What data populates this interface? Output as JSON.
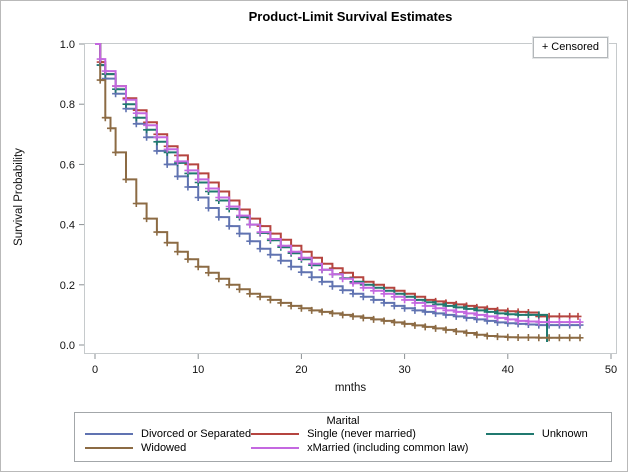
{
  "figure": {
    "title": "Product-Limit Survival Estimates"
  },
  "inset": {
    "censored_label": "+ Censored"
  },
  "axes": {
    "x": {
      "label": "mnths",
      "min": 0,
      "max": 50,
      "ticks": [
        0,
        10,
        20,
        30,
        40,
        50
      ],
      "tick_labels": [
        "0",
        "10",
        "20",
        "30",
        "40",
        "50"
      ]
    },
    "y": {
      "label": "Survival Probability",
      "min": 0.0,
      "max": 1.0,
      "ticks": [
        0.0,
        0.2,
        0.4,
        0.6,
        0.8,
        1.0
      ],
      "tick_labels": [
        "0.0",
        "0.2",
        "0.4",
        "0.6",
        "0.8",
        "1.0"
      ]
    }
  },
  "legend": {
    "title": "Marital",
    "entries": [
      {
        "label": "Divorced or Separated",
        "color": "#6073b1"
      },
      {
        "label": "Single (never married)",
        "color": "#b5443f"
      },
      {
        "label": "Unknown",
        "color": "#20796f"
      },
      {
        "label": "Widowed",
        "color": "#8c6b44"
      },
      {
        "label": "xMarried (including common law)",
        "color": "#c468e0"
      }
    ]
  },
  "chart_data": {
    "type": "line",
    "step": true,
    "title": "Product-Limit Survival Estimates",
    "xlabel": "mnths",
    "ylabel": "Survival Probability",
    "xlim": [
      0,
      50
    ],
    "ylim": [
      0.0,
      1.0
    ],
    "grid": false,
    "legend_position": "bottom",
    "censor_marker": "+",
    "series": [
      {
        "name": "Divorced or Separated",
        "color": "#6073b1",
        "end_event": false,
        "points": [
          [
            0,
            1.0
          ],
          [
            0.5,
            0.93
          ],
          [
            1,
            0.885
          ],
          [
            2,
            0.835
          ],
          [
            3,
            0.785
          ],
          [
            4,
            0.735
          ],
          [
            5,
            0.69
          ],
          [
            6,
            0.645
          ],
          [
            7,
            0.6
          ],
          [
            8,
            0.56
          ],
          [
            9,
            0.525
          ],
          [
            10,
            0.49
          ],
          [
            11,
            0.455
          ],
          [
            12,
            0.425
          ],
          [
            13,
            0.395
          ],
          [
            14,
            0.37
          ],
          [
            15,
            0.345
          ],
          [
            16,
            0.32
          ],
          [
            17,
            0.3
          ],
          [
            18,
            0.28
          ],
          [
            19,
            0.26
          ],
          [
            20,
            0.242
          ],
          [
            21,
            0.225
          ],
          [
            22,
            0.21
          ],
          [
            23,
            0.195
          ],
          [
            24,
            0.182
          ],
          [
            25,
            0.17
          ],
          [
            26,
            0.16
          ],
          [
            27,
            0.15
          ],
          [
            28,
            0.14
          ],
          [
            29,
            0.13
          ],
          [
            30,
            0.122
          ],
          [
            31,
            0.115
          ],
          [
            32,
            0.11
          ],
          [
            33,
            0.105
          ],
          [
            34,
            0.1
          ],
          [
            35,
            0.095
          ],
          [
            36,
            0.09
          ],
          [
            37,
            0.085
          ],
          [
            38,
            0.08
          ],
          [
            39,
            0.075
          ],
          [
            40,
            0.072
          ],
          [
            41,
            0.07
          ],
          [
            42,
            0.068
          ],
          [
            43,
            0.066
          ],
          [
            44,
            0.066
          ],
          [
            45,
            0.066
          ],
          [
            46,
            0.066
          ],
          [
            47,
            0.066
          ]
        ]
      },
      {
        "name": "Single (never married)",
        "color": "#b5443f",
        "end_event": false,
        "points": [
          [
            0,
            1.0
          ],
          [
            0.5,
            0.94
          ],
          [
            1,
            0.9
          ],
          [
            2,
            0.86
          ],
          [
            3,
            0.82
          ],
          [
            4,
            0.78
          ],
          [
            5,
            0.74
          ],
          [
            6,
            0.7
          ],
          [
            7,
            0.66
          ],
          [
            8,
            0.63
          ],
          [
            9,
            0.6
          ],
          [
            10,
            0.57
          ],
          [
            11,
            0.54
          ],
          [
            12,
            0.51
          ],
          [
            13,
            0.48
          ],
          [
            14,
            0.45
          ],
          [
            15,
            0.42
          ],
          [
            16,
            0.395
          ],
          [
            17,
            0.37
          ],
          [
            18,
            0.35
          ],
          [
            19,
            0.33
          ],
          [
            20,
            0.31
          ],
          [
            21,
            0.29
          ],
          [
            22,
            0.27
          ],
          [
            23,
            0.255
          ],
          [
            24,
            0.24
          ],
          [
            25,
            0.225
          ],
          [
            26,
            0.21
          ],
          [
            27,
            0.2
          ],
          [
            28,
            0.19
          ],
          [
            29,
            0.18
          ],
          [
            30,
            0.17
          ],
          [
            31,
            0.16
          ],
          [
            32,
            0.15
          ],
          [
            33,
            0.145
          ],
          [
            34,
            0.14
          ],
          [
            35,
            0.135
          ],
          [
            36,
            0.13
          ],
          [
            37,
            0.125
          ],
          [
            38,
            0.12
          ],
          [
            39,
            0.115
          ],
          [
            40,
            0.112
          ],
          [
            41,
            0.11
          ],
          [
            42,
            0.108
          ],
          [
            43,
            0.095
          ],
          [
            44,
            0.095
          ],
          [
            45,
            0.095
          ],
          [
            46,
            0.095
          ],
          [
            46.8,
            0.095
          ]
        ]
      },
      {
        "name": "Unknown",
        "color": "#20796f",
        "end_event": true,
        "points": [
          [
            0,
            1.0
          ],
          [
            0.5,
            0.93
          ],
          [
            1,
            0.9
          ],
          [
            2,
            0.85
          ],
          [
            3,
            0.8
          ],
          [
            4,
            0.755
          ],
          [
            5,
            0.715
          ],
          [
            6,
            0.675
          ],
          [
            7,
            0.64
          ],
          [
            8,
            0.605
          ],
          [
            9,
            0.57
          ],
          [
            10,
            0.54
          ],
          [
            11,
            0.51
          ],
          [
            12,
            0.48
          ],
          [
            13,
            0.452
          ],
          [
            14,
            0.425
          ],
          [
            15,
            0.4
          ],
          [
            16,
            0.372
          ],
          [
            17,
            0.348
          ],
          [
            18,
            0.325
          ],
          [
            19,
            0.305
          ],
          [
            20,
            0.285
          ],
          [
            21,
            0.265
          ],
          [
            22,
            0.25
          ],
          [
            23,
            0.235
          ],
          [
            24,
            0.222
          ],
          [
            25,
            0.21
          ],
          [
            26,
            0.2
          ],
          [
            27,
            0.19
          ],
          [
            28,
            0.18
          ],
          [
            29,
            0.17
          ],
          [
            30,
            0.16
          ],
          [
            31,
            0.15
          ],
          [
            32,
            0.142
          ],
          [
            33,
            0.135
          ],
          [
            34,
            0.13
          ],
          [
            35,
            0.125
          ],
          [
            36,
            0.12
          ],
          [
            37,
            0.115
          ],
          [
            38,
            0.11
          ],
          [
            39,
            0.105
          ],
          [
            40,
            0.102
          ],
          [
            41,
            0.1
          ],
          [
            42,
            0.1
          ],
          [
            43,
            0.1
          ],
          [
            43.8,
            0.01
          ]
        ]
      },
      {
        "name": "Widowed",
        "color": "#8c6b44",
        "end_event": false,
        "points": [
          [
            0,
            1.0
          ],
          [
            0.5,
            0.88
          ],
          [
            1,
            0.755
          ],
          [
            1.5,
            0.72
          ],
          [
            2,
            0.64
          ],
          [
            3,
            0.55
          ],
          [
            4,
            0.47
          ],
          [
            5,
            0.42
          ],
          [
            6,
            0.375
          ],
          [
            7,
            0.34
          ],
          [
            8,
            0.31
          ],
          [
            9,
            0.285
          ],
          [
            10,
            0.26
          ],
          [
            11,
            0.24
          ],
          [
            12,
            0.22
          ],
          [
            13,
            0.2
          ],
          [
            14,
            0.185
          ],
          [
            15,
            0.17
          ],
          [
            16,
            0.16
          ],
          [
            17,
            0.15
          ],
          [
            18,
            0.14
          ],
          [
            19,
            0.13
          ],
          [
            20,
            0.122
          ],
          [
            21,
            0.115
          ],
          [
            22,
            0.11
          ],
          [
            23,
            0.105
          ],
          [
            24,
            0.1
          ],
          [
            25,
            0.095
          ],
          [
            26,
            0.09
          ],
          [
            27,
            0.085
          ],
          [
            28,
            0.08
          ],
          [
            29,
            0.075
          ],
          [
            30,
            0.07
          ],
          [
            31,
            0.065
          ],
          [
            32,
            0.06
          ],
          [
            33,
            0.055
          ],
          [
            34,
            0.05
          ],
          [
            35,
            0.045
          ],
          [
            36,
            0.04
          ],
          [
            37,
            0.034
          ],
          [
            38,
            0.03
          ],
          [
            39,
            0.028
          ],
          [
            40,
            0.026
          ],
          [
            41,
            0.025
          ],
          [
            42,
            0.025
          ],
          [
            43,
            0.024
          ],
          [
            44,
            0.024
          ],
          [
            45,
            0.024
          ],
          [
            46,
            0.024
          ],
          [
            47,
            0.024
          ]
        ]
      },
      {
        "name": "xMarried (including common law)",
        "color": "#c468e0",
        "end_event": false,
        "points": [
          [
            0,
            1.0
          ],
          [
            0.5,
            0.95
          ],
          [
            1,
            0.91
          ],
          [
            2,
            0.86
          ],
          [
            3,
            0.815
          ],
          [
            4,
            0.77
          ],
          [
            5,
            0.73
          ],
          [
            6,
            0.69
          ],
          [
            7,
            0.65
          ],
          [
            8,
            0.61
          ],
          [
            9,
            0.58
          ],
          [
            10,
            0.55
          ],
          [
            11,
            0.52
          ],
          [
            12,
            0.49
          ],
          [
            13,
            0.46
          ],
          [
            14,
            0.43
          ],
          [
            15,
            0.4
          ],
          [
            16,
            0.375
          ],
          [
            17,
            0.352
          ],
          [
            18,
            0.33
          ],
          [
            19,
            0.31
          ],
          [
            20,
            0.29
          ],
          [
            21,
            0.27
          ],
          [
            22,
            0.25
          ],
          [
            23,
            0.235
          ],
          [
            24,
            0.22
          ],
          [
            25,
            0.205
          ],
          [
            26,
            0.19
          ],
          [
            27,
            0.18
          ],
          [
            28,
            0.17
          ],
          [
            29,
            0.16
          ],
          [
            30,
            0.15
          ],
          [
            31,
            0.14
          ],
          [
            32,
            0.13
          ],
          [
            33,
            0.122
          ],
          [
            34,
            0.115
          ],
          [
            35,
            0.11
          ],
          [
            36,
            0.105
          ],
          [
            37,
            0.1
          ],
          [
            38,
            0.095
          ],
          [
            39,
            0.09
          ],
          [
            40,
            0.085
          ],
          [
            41,
            0.08
          ],
          [
            42,
            0.078
          ],
          [
            43,
            0.076
          ],
          [
            44,
            0.076
          ],
          [
            45,
            0.076
          ],
          [
            46,
            0.076
          ],
          [
            47,
            0.076
          ]
        ]
      }
    ]
  },
  "layout_colors": {
    "frame_border": "#c6cacc",
    "tick_mark": "#8b9094",
    "legend_border": "#a3a7aa"
  }
}
